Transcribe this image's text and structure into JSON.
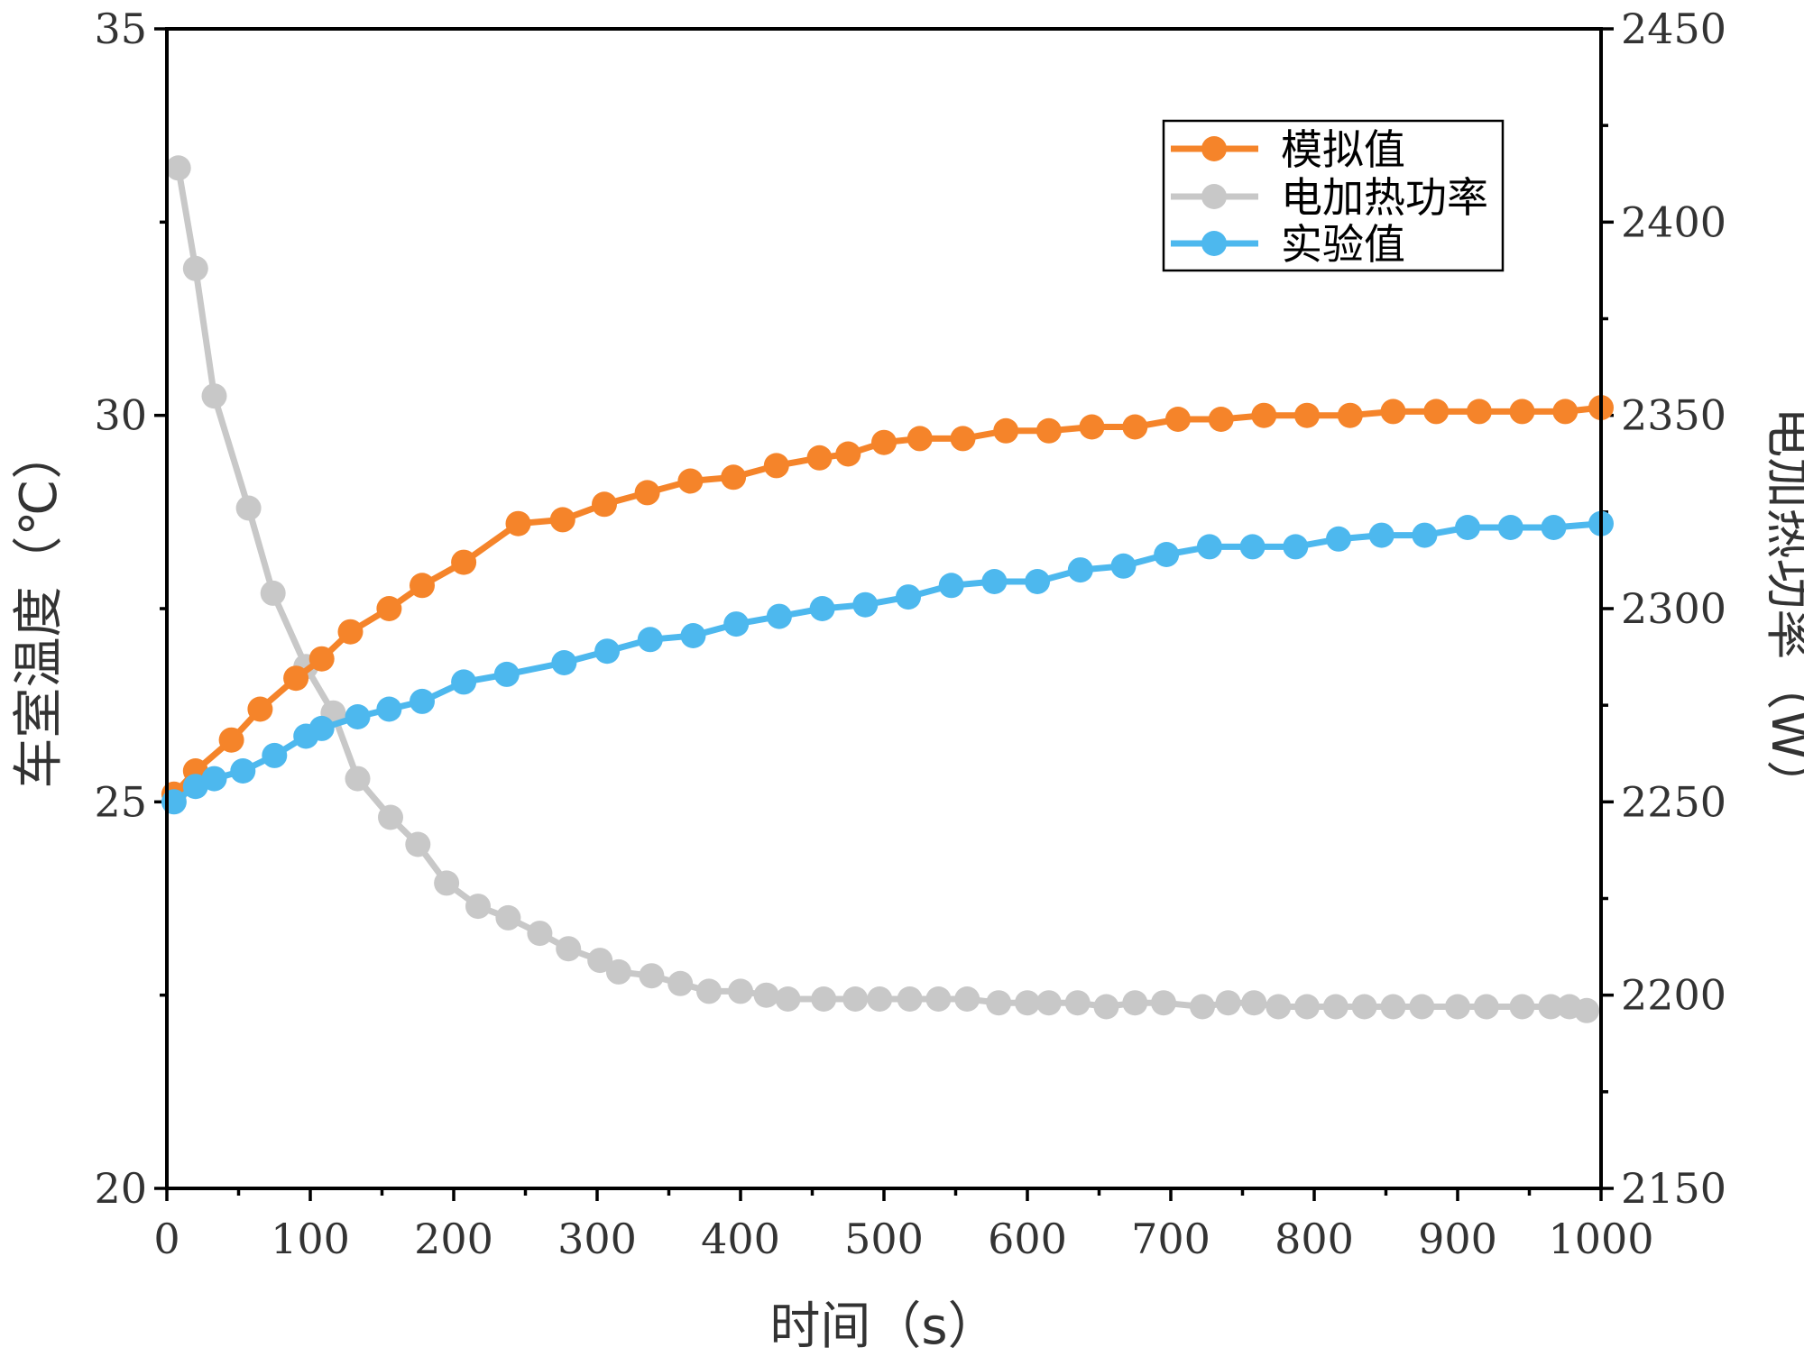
{
  "chart_data": {
    "type": "line",
    "title": "",
    "xlabel": "时间（s）",
    "ylabel": "车室温度（℃）",
    "y2label": "电加热功率（W）",
    "xlim": [
      0,
      1000
    ],
    "ylim": [
      20,
      35
    ],
    "y2lim": [
      2150,
      2450
    ],
    "xticks": [
      0,
      100,
      200,
      300,
      400,
      500,
      600,
      700,
      800,
      900,
      1000
    ],
    "yticks": [
      20,
      25,
      30,
      35
    ],
    "y2ticks": [
      2150,
      2200,
      2250,
      2300,
      2350,
      2400,
      2450
    ],
    "legend_position": "top-right",
    "series": [
      {
        "name": "模拟值",
        "axis": "left",
        "color": "#f5842a",
        "x": [
          5,
          20,
          45,
          65,
          90,
          108,
          128,
          155,
          178,
          207,
          245,
          276,
          305,
          335,
          365,
          395,
          425,
          455,
          475,
          500,
          525,
          555,
          585,
          615,
          645,
          675,
          705,
          735,
          765,
          795,
          825,
          855,
          885,
          915,
          945,
          975,
          1000
        ],
        "values": [
          25.1,
          25.4,
          25.8,
          26.2,
          26.6,
          26.85,
          27.2,
          27.5,
          27.8,
          28.1,
          28.6,
          28.65,
          28.85,
          29.0,
          29.15,
          29.2,
          29.35,
          29.45,
          29.5,
          29.65,
          29.7,
          29.7,
          29.8,
          29.8,
          29.85,
          29.85,
          29.95,
          29.95,
          30.0,
          30.0,
          30.0,
          30.05,
          30.05,
          30.05,
          30.05,
          30.05,
          30.1
        ]
      },
      {
        "name": "电加热功率",
        "axis": "right",
        "color": "#c8c8c8",
        "x": [
          8,
          20,
          33,
          57,
          74,
          97,
          116,
          133,
          156,
          175,
          195,
          217,
          238,
          260,
          280,
          302,
          315,
          338,
          358,
          378,
          400,
          418,
          433,
          458,
          480,
          497,
          518,
          538,
          558,
          580,
          600,
          615,
          635,
          655,
          675,
          695,
          722,
          740,
          758,
          775,
          795,
          815,
          835,
          855,
          875,
          900,
          920,
          945,
          965,
          978,
          990
        ],
        "values": [
          2414,
          2388,
          2355,
          2326,
          2304,
          2285,
          2273,
          2256,
          2246,
          2239,
          2229,
          2223,
          2220,
          2216,
          2212,
          2209,
          2206,
          2205,
          2203,
          2201,
          2201,
          2200,
          2199,
          2199,
          2199,
          2199,
          2199,
          2199,
          2199,
          2198,
          2198,
          2198,
          2198,
          2197,
          2198,
          2198,
          2197,
          2198,
          2198,
          2197,
          2197,
          2197,
          2197,
          2197,
          2197,
          2197,
          2197,
          2197,
          2197,
          2197,
          2196
        ]
      },
      {
        "name": "实验值",
        "axis": "left",
        "color": "#4db8ee",
        "x": [
          5,
          20,
          33,
          53,
          75,
          97,
          108,
          133,
          155,
          178,
          207,
          237,
          277,
          307,
          337,
          367,
          397,
          427,
          457,
          487,
          517,
          547,
          577,
          607,
          637,
          667,
          697,
          727,
          757,
          787,
          817,
          847,
          877,
          907,
          937,
          967,
          1000
        ],
        "values": [
          25.0,
          25.2,
          25.3,
          25.4,
          25.6,
          25.85,
          25.95,
          26.1,
          26.2,
          26.3,
          26.55,
          26.65,
          26.8,
          26.95,
          27.1,
          27.15,
          27.3,
          27.4,
          27.5,
          27.55,
          27.65,
          27.8,
          27.85,
          27.85,
          28.0,
          28.05,
          28.2,
          28.3,
          28.3,
          28.3,
          28.4,
          28.45,
          28.45,
          28.55,
          28.55,
          28.55,
          28.6
        ]
      }
    ]
  }
}
